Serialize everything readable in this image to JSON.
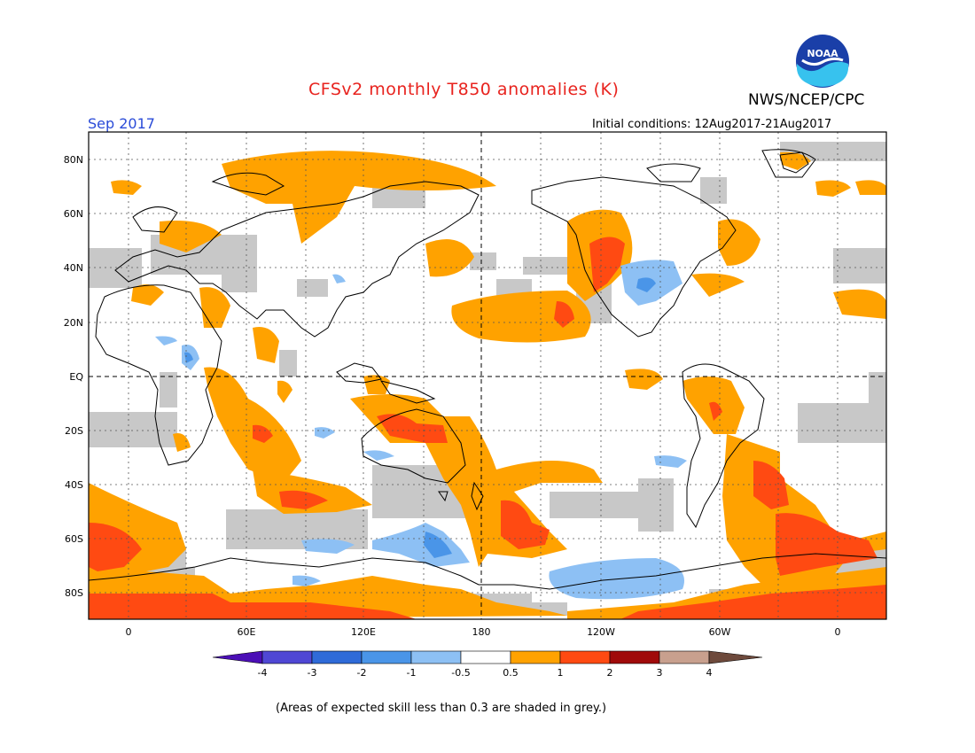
{
  "header": {
    "title": "CFSv2 monthly T850 anomalies (K)",
    "month": "Sep 2017",
    "agency": "NWS/NCEP/CPC",
    "initial_conditions": "Initial conditions: 12Aug2017-21Aug2017",
    "logo_text": "NOAA"
  },
  "axes": {
    "lat_labels": [
      "80N",
      "60N",
      "40N",
      "20N",
      "EQ",
      "20S",
      "40S",
      "60S",
      "80S"
    ],
    "lon_labels": [
      "0",
      "60E",
      "120E",
      "180",
      "120W",
      "60W",
      "0"
    ]
  },
  "colorbar": {
    "tick_labels": [
      "-4",
      "-3",
      "-2",
      "-1",
      "-0.5",
      "0.5",
      "1",
      "2",
      "3",
      "4"
    ],
    "colors": [
      "#4b0fb6",
      "#4f47d4",
      "#2f6bd8",
      "#4a95e8",
      "#8dc0f4",
      "#ffffff",
      "#ffa200",
      "#ff4a12",
      "#a00a0a",
      "#c8a08e",
      "#6e4a3c"
    ],
    "grey_color": "#c8c8c8"
  },
  "footnote": "(Areas of expected skill less than 0.3 are shaded in grey.)"
}
